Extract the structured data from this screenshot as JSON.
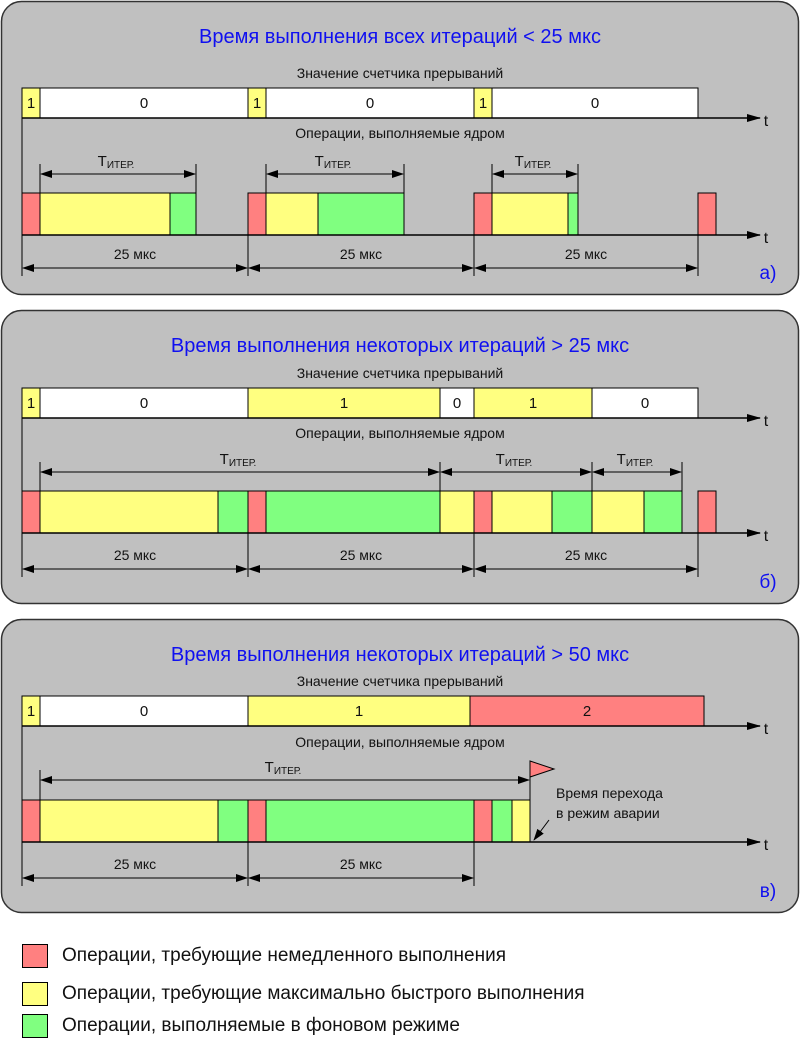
{
  "colors": {
    "red": "#ff8080",
    "yellow": "#ffff80",
    "green": "#80ff80",
    "white": "#ffffff",
    "panel": "#c0c0c0",
    "title": "#1010f0",
    "outline": "#000000"
  },
  "common": {
    "counter_title": "Значение счетчика прерываний",
    "ops_title": "Операции, выполняемые ядром",
    "axis_label": "t",
    "period_label": "25 мкс",
    "t_iter_main": "T",
    "t_iter_sub": "ИТЕР."
  },
  "panels": [
    {
      "title": "Время выполнения всех итераций < 25 мкс",
      "letter": "а)",
      "counter": [
        {
          "value": "1",
          "color": "yellow"
        },
        {
          "value": "0",
          "color": "white"
        },
        {
          "value": "1",
          "color": "yellow"
        },
        {
          "value": "0",
          "color": "white"
        },
        {
          "value": "1",
          "color": "yellow"
        },
        {
          "value": "0",
          "color": "white"
        }
      ]
    },
    {
      "title": "Время выполнения некоторых итераций > 25 мкс",
      "letter": "б)",
      "counter": [
        {
          "value": "1",
          "color": "yellow"
        },
        {
          "value": "0",
          "color": "white"
        },
        {
          "value": "1",
          "color": "yellow"
        },
        {
          "value": "0",
          "color": "white"
        },
        {
          "value": "1",
          "color": "yellow"
        },
        {
          "value": "0",
          "color": "white"
        }
      ]
    },
    {
      "title": "Время выполнения некоторых итераций > 50 мкс",
      "letter": "в)",
      "counter": [
        {
          "value": "1",
          "color": "yellow"
        },
        {
          "value": "0",
          "color": "white"
        },
        {
          "value": "1",
          "color": "yellow"
        },
        {
          "value": "2",
          "color": "red"
        }
      ],
      "failure_label_line1": "Время перехода",
      "failure_label_line2": "в режим аварии"
    }
  ],
  "legend": [
    {
      "label": "Операции, требующие немедленного выполнения",
      "color": "red"
    },
    {
      "label": "Операции, требующие максимально быстрого выполнения",
      "color": "yellow"
    },
    {
      "label": "Операции, выполняемые в фоновом режиме",
      "color": "green"
    }
  ]
}
